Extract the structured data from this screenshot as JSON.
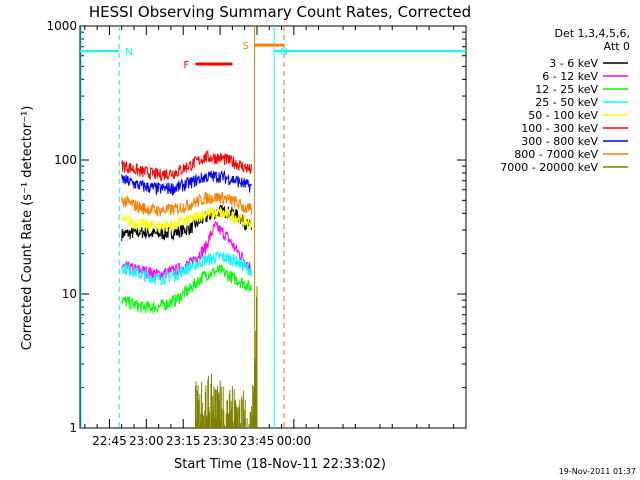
{
  "chart_data": {
    "type": "line",
    "title": "HESSI Observing Summary Count Rates, Corrected",
    "xlabel": "Start Time (18-Nov-11 22:33:02)",
    "ylabel": "Corrected Count Rate (s⁻¹ detector⁻¹)",
    "y_scale": "log",
    "ylim": [
      1,
      1000
    ],
    "xlim": [
      "22:33:02",
      "01:10:00"
    ],
    "x_ticks": [
      "22:45",
      "23:00",
      "23:15",
      "23:30",
      "23:45",
      "00:00"
    ],
    "y_ticks": [
      "1",
      "10",
      "100",
      "1000"
    ],
    "legend_header": [
      "Det 1,3,4,5,6,",
      "Att 0"
    ],
    "legend_position": "right",
    "footer_date": "19-Nov-2011 01:37",
    "series": [
      {
        "name": "3 - 6 keV",
        "color": "#000000",
        "x": [
          "22:50",
          "22:58",
          "23:05",
          "23:12",
          "23:18",
          "23:24",
          "23:30",
          "23:36",
          "23:40",
          "23:43"
        ],
        "y": [
          28,
          29,
          28,
          29,
          31,
          37,
          42,
          40,
          34,
          31
        ]
      },
      {
        "name": "6 - 12 keV",
        "color": "#ff00ff",
        "x": [
          "22:50",
          "22:58",
          "23:05",
          "23:12",
          "23:18",
          "23:24",
          "23:28",
          "23:32",
          "23:36",
          "23:40",
          "23:43"
        ],
        "y": [
          16,
          15,
          14,
          15,
          17,
          22,
          32,
          28,
          22,
          18,
          15
        ]
      },
      {
        "name": "12 - 25 keV",
        "color": "#00ff00",
        "x": [
          "22:50",
          "22:58",
          "23:05",
          "23:12",
          "23:18",
          "23:24",
          "23:30",
          "23:36",
          "23:40",
          "23:43"
        ],
        "y": [
          9,
          8,
          8,
          9,
          11,
          14,
          15,
          13,
          12,
          11
        ]
      },
      {
        "name": "25 - 50 keV",
        "color": "#00ffff",
        "x": [
          "22:50",
          "22:58",
          "23:05",
          "23:12",
          "23:18",
          "23:24",
          "23:30",
          "23:36",
          "23:40",
          "23:43"
        ],
        "y": [
          16,
          14,
          13,
          14,
          16,
          18,
          19,
          18,
          16,
          15
        ]
      },
      {
        "name": "50 - 100 keV",
        "color": "#ffff00",
        "x": [
          "22:50",
          "22:58",
          "23:05",
          "23:12",
          "23:18",
          "23:24",
          "23:30",
          "23:36",
          "23:40",
          "23:43"
        ],
        "y": [
          36,
          33,
          32,
          33,
          36,
          40,
          40,
          38,
          35,
          33
        ]
      },
      {
        "name": "100 - 300 keV",
        "color": "#ff0000",
        "x": [
          "22:50",
          "22:58",
          "23:05",
          "23:12",
          "23:18",
          "23:24",
          "23:30",
          "23:36",
          "23:40",
          "23:43"
        ],
        "y": [
          92,
          82,
          78,
          81,
          92,
          105,
          104,
          96,
          88,
          84
        ]
      },
      {
        "name": "300 - 800 keV",
        "color": "#0000ff",
        "x": [
          "22:50",
          "22:58",
          "23:05",
          "23:12",
          "23:18",
          "23:24",
          "23:30",
          "23:36",
          "23:40",
          "23:43"
        ],
        "y": [
          72,
          64,
          61,
          62,
          68,
          75,
          76,
          71,
          66,
          63
        ]
      },
      {
        "name": "800 - 7000 keV",
        "color": "#ff8000",
        "x": [
          "22:50",
          "22:58",
          "23:05",
          "23:12",
          "23:18",
          "23:24",
          "23:30",
          "23:36",
          "23:40",
          "23:43"
        ],
        "y": [
          50,
          44,
          42,
          43,
          47,
          52,
          53,
          49,
          44,
          42
        ]
      },
      {
        "name": "7000 - 20000 keV",
        "color": "#808000",
        "x": [
          "23:20",
          "23:25",
          "23:30",
          "23:35",
          "23:43",
          "23:44",
          "23:45"
        ],
        "y": [
          1.6,
          1.8,
          1.7,
          1.5,
          1.2,
          3,
          8
        ]
      }
    ],
    "annotations": [
      {
        "label": "N",
        "color": "#00ffff",
        "kind": "night",
        "x": [
          "22:33:02",
          "22:49:00"
        ],
        "y": 650
      },
      {
        "label": "N",
        "color": "#00ffff",
        "kind": "night",
        "x": [
          "23:52:00",
          "01:10:00"
        ],
        "y": 650
      },
      {
        "label": "F",
        "color": "#ff0000",
        "kind": "flare",
        "x": [
          "23:20:00",
          "23:35:00"
        ],
        "y": 520
      },
      {
        "label": "S",
        "color": "#ff8000",
        "kind": "saa",
        "x": [
          "23:44:00",
          "23:56:00"
        ],
        "y": 720
      }
    ]
  }
}
